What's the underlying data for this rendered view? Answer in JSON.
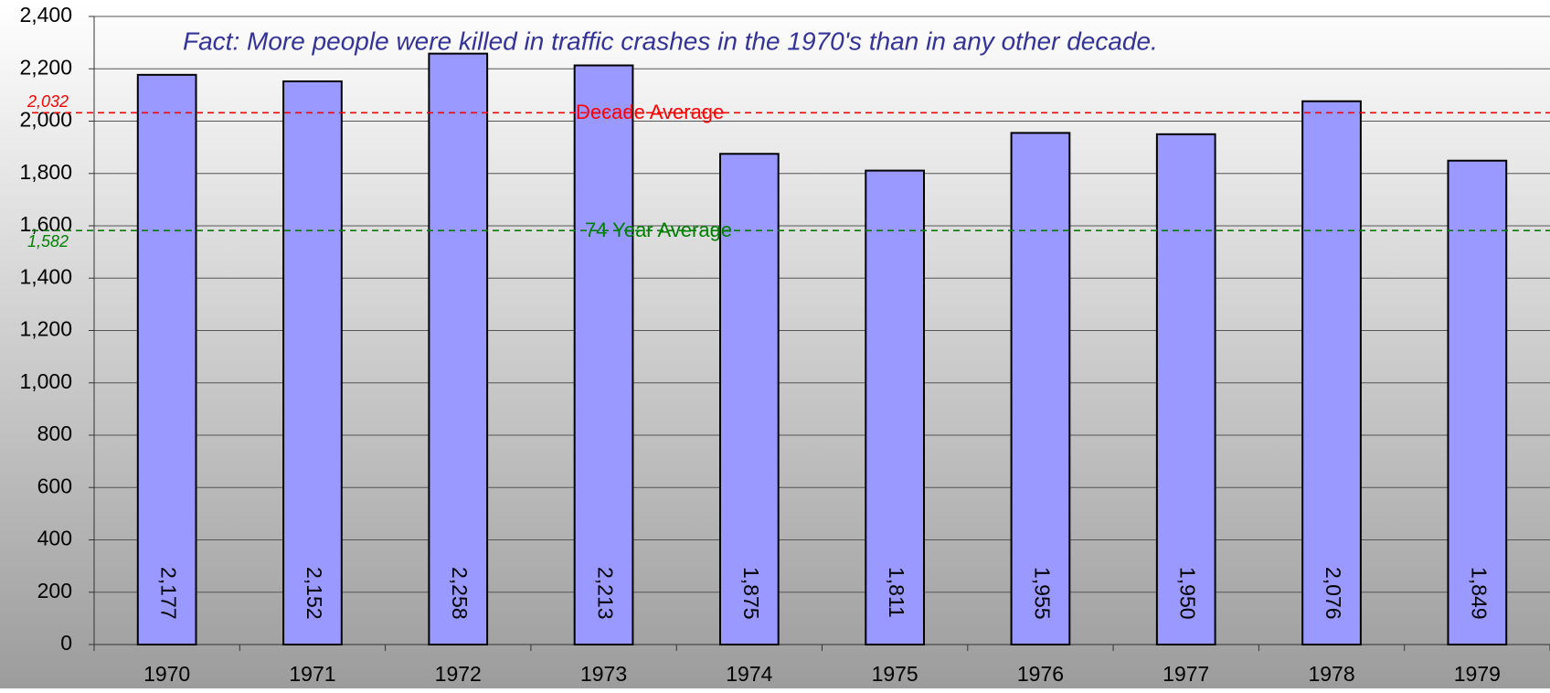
{
  "chart_data": {
    "type": "bar",
    "annotation": "Fact: More people were killed in traffic crashes in the 1970's than in any other decade.",
    "categories": [
      "1970",
      "1971",
      "1972",
      "1973",
      "1974",
      "1975",
      "1976",
      "1977",
      "1978",
      "1979"
    ],
    "values": [
      2177,
      2152,
      2258,
      2213,
      1875,
      1811,
      1955,
      1950,
      2076,
      1849
    ],
    "value_labels": [
      "2,177",
      "2,152",
      "2,258",
      "2,213",
      "1,875",
      "1,811",
      "1,955",
      "1,950",
      "2,076",
      "1,849"
    ],
    "color": "#9999ff",
    "ylim": [
      0,
      2400
    ],
    "yticks": [
      0,
      200,
      400,
      600,
      800,
      {
        "value": 1000,
        "label": "1,000"
      },
      {
        "value": 1200,
        "label": "1,200"
      },
      {
        "value": 1400,
        "label": "1,400"
      },
      {
        "value": 1600,
        "label": "1,600"
      },
      {
        "value": 1800,
        "label": "1,800"
      },
      {
        "value": 2000,
        "label": "2,000"
      },
      {
        "value": 2200,
        "label": "2,200"
      },
      {
        "value": 2400,
        "label": "2,400"
      }
    ],
    "grid": true,
    "reference_lines": [
      {
        "name": "Decade Average",
        "value": 2032,
        "label": "2,032",
        "color": "#ff0000"
      },
      {
        "name": "74 Year Average",
        "value": 1582,
        "label": "1,582",
        "color": "#008000"
      }
    ]
  }
}
